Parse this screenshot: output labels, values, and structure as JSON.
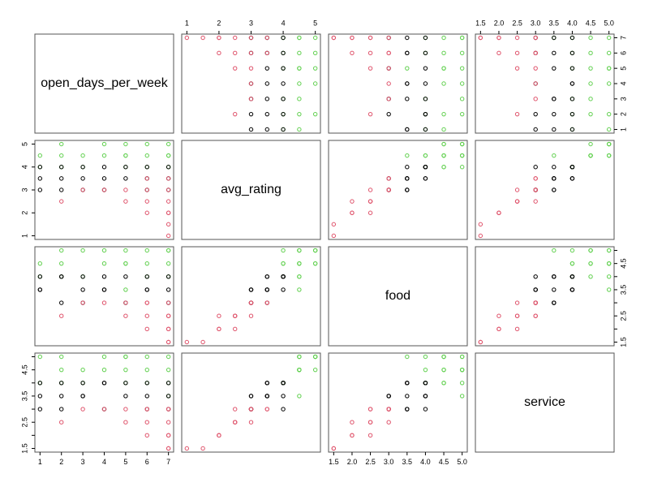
{
  "chart_data": {
    "type": "scatter_matrix",
    "variables": [
      {
        "name": "open_days_per_week",
        "lim": [
          0.76,
          7.24
        ],
        "ticks": [
          1,
          2,
          3,
          4,
          5,
          6,
          7
        ]
      },
      {
        "name": "avg_rating",
        "lim": [
          0.84,
          5.16
        ],
        "ticks": [
          1,
          2,
          3,
          4,
          5
        ]
      },
      {
        "name": "food",
        "lim": [
          1.36,
          5.14
        ],
        "ticks": [
          1.5,
          {
            "value": 2,
            "label": "2.0"
          },
          2.5,
          {
            "value": 3,
            "label": "3.0"
          },
          3.5,
          {
            "value": 4,
            "label": "4.0"
          },
          4.5,
          {
            "value": 5,
            "label": "5.0"
          }
        ]
      },
      {
        "name": "service",
        "lim": [
          1.36,
          5.14
        ],
        "ticks": [
          1.5,
          {
            "value": 2,
            "label": "2.0"
          },
          2.5,
          {
            "value": 3,
            "label": "3.0"
          },
          3.5,
          {
            "value": 4,
            "label": "4.0"
          },
          4.5,
          {
            "value": 5,
            "label": "5.0"
          }
        ]
      }
    ],
    "series": [
      {
        "color": "#61D04F",
        "values": [
          [
            1,
            4,
            4,
            4
          ],
          [
            1,
            4.5,
            4.5,
            5
          ],
          [
            2,
            5,
            5,
            4.5
          ],
          [
            2,
            4.5,
            4,
            5
          ],
          [
            2,
            4,
            4.5,
            4
          ],
          [
            3,
            4.5,
            5,
            4.5
          ],
          [
            3,
            4,
            4,
            4
          ],
          [
            4,
            5,
            4.5,
            5
          ],
          [
            4,
            4.5,
            5,
            4.5
          ],
          [
            5,
            4.5,
            4.5,
            4.5
          ],
          [
            5,
            5,
            5,
            5
          ],
          [
            5,
            4,
            4.5,
            4
          ],
          [
            6,
            4.5,
            4,
            4.5
          ],
          [
            6,
            5,
            4.5,
            5
          ],
          [
            6,
            4,
            5,
            4
          ],
          [
            7,
            5,
            5,
            5
          ],
          [
            7,
            4.5,
            4.5,
            4.5
          ],
          [
            7,
            4,
            4,
            4
          ],
          [
            5,
            4.5,
            3.5,
            5
          ],
          [
            7,
            4.5,
            5,
            3.5
          ]
        ]
      },
      {
        "color": "#000000",
        "values": [
          [
            1,
            3,
            3.5,
            3
          ],
          [
            1,
            3.5,
            3.5,
            3.5
          ],
          [
            1,
            4,
            4,
            4
          ],
          [
            2,
            3,
            3,
            3
          ],
          [
            2,
            3.5,
            4,
            3.5
          ],
          [
            2,
            4,
            4,
            4
          ],
          [
            3,
            3,
            3,
            3.5
          ],
          [
            3,
            3.5,
            3.5,
            4
          ],
          [
            3,
            4,
            4,
            3.5
          ],
          [
            4,
            3,
            3.5,
            3
          ],
          [
            4,
            3.5,
            3.5,
            4
          ],
          [
            4,
            4,
            4,
            4
          ],
          [
            5,
            3.5,
            3,
            3.5
          ],
          [
            5,
            4,
            4,
            4
          ],
          [
            6,
            3,
            3.5,
            3
          ],
          [
            6,
            3.5,
            4,
            3.5
          ],
          [
            6,
            4,
            3.5,
            4
          ],
          [
            7,
            3,
            3,
            3.5
          ],
          [
            7,
            3.5,
            3.5,
            4
          ],
          [
            7,
            4,
            4,
            3
          ]
        ]
      },
      {
        "color": "#DF536B",
        "values": [
          [
            2,
            2.5,
            2.5,
            2.5
          ],
          [
            3,
            3,
            3,
            3
          ],
          [
            4,
            3,
            3,
            3
          ],
          [
            5,
            2.5,
            2.5,
            2.5
          ],
          [
            5,
            3,
            3,
            3
          ],
          [
            6,
            2,
            2,
            2
          ],
          [
            6,
            2.5,
            2.5,
            3
          ],
          [
            6,
            3,
            3,
            2.5
          ],
          [
            6,
            3.5,
            3,
            3
          ],
          [
            7,
            1,
            1.5,
            1.5
          ],
          [
            7,
            1.5,
            1.5,
            1.5
          ],
          [
            7,
            2,
            2,
            2
          ],
          [
            7,
            2.5,
            2,
            2.5
          ],
          [
            7,
            3,
            2.5,
            3
          ],
          [
            7,
            3.5,
            3,
            3
          ],
          [
            7,
            2,
            2.5,
            2
          ]
        ]
      }
    ]
  }
}
